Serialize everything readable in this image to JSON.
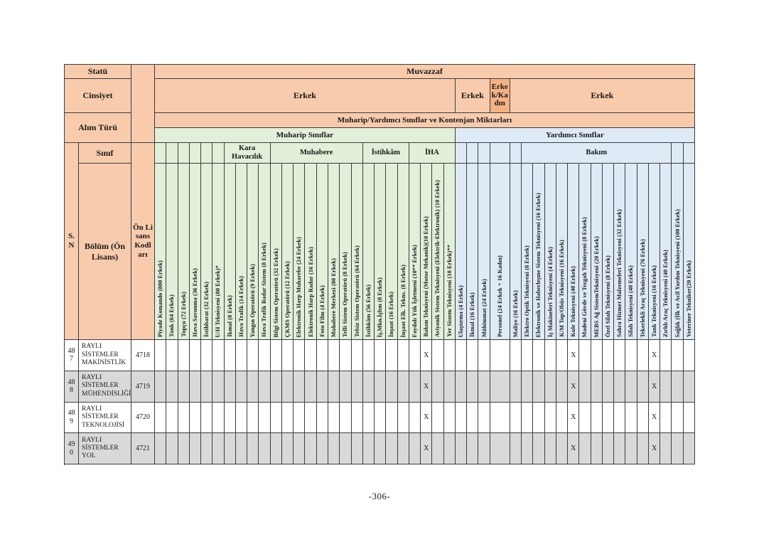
{
  "page": {
    "footer": "-306-"
  },
  "colors": {
    "header_peach": "#F8CBAD",
    "header_peach_dark": "#F4B183",
    "muharip_green": "#E2EFD9",
    "yardimci_blue": "#DEEAF6",
    "row_gray": "#D9D9D9",
    "row_white": "#FFFFFF",
    "border": "#3d3d3d"
  },
  "left_header": {
    "statu": "Statü",
    "cinsiyet": "Cinsiyet",
    "alim_turu": "Alım Türü",
    "sinif": "Sınıf",
    "sn": "S. N",
    "bolum": "Bölüm (Ön Lisans)",
    "on_lisans_kodlari": "Ön Lisans Kodları"
  },
  "top_header": {
    "muvazzaf": "Muvazzaf",
    "kontenjan": "Muharip/Yardımcı Sınıflar ve Kontenjan Miktarları",
    "gender_cells": [
      {
        "label": "Erkek",
        "start": 1,
        "end": 26,
        "dark": false
      },
      {
        "label": "Erkek",
        "start": 27,
        "end": 29,
        "dark": false
      },
      {
        "label": "Erkek/Kadın",
        "start": 30,
        "end": 30,
        "dark": true
      },
      {
        "label": "Erkek",
        "start": 31,
        "end": 46,
        "dark": false
      }
    ]
  },
  "sections": [
    {
      "label": "Muharip Sınıflar",
      "start": 1,
      "end": 26
    },
    {
      "label": "Yardımcı Sınıflar",
      "start": 27,
      "end": 46
    }
  ],
  "groups": [
    {
      "label": "Kara Havacılık",
      "start": 7,
      "end": 10
    },
    {
      "label": "Muhabere",
      "start": 11,
      "end": 18
    },
    {
      "label": "İstihkâm",
      "start": 19,
      "end": 22
    },
    {
      "label": "İHA",
      "start": 23,
      "end": 26
    },
    {
      "label": "Bakım",
      "start": 32,
      "end": 44
    }
  ],
  "columns": [
    {
      "label": "Piyade Komando (800 Erkek)",
      "sec": "m"
    },
    {
      "label": "Tank (64 Erkek)",
      "sec": "m"
    },
    {
      "label": "Topçu (72 Erkek)",
      "sec": "m"
    },
    {
      "label": "Hava Savunma (36 Erkek)",
      "sec": "m"
    },
    {
      "label": "İstihbarat (32 Erkek)",
      "sec": "m"
    },
    {
      "label": "U/H Teknisyeni (80 Erkek)*",
      "sec": "m"
    },
    {
      "label": "İkmal (8 Erkek)",
      "sec": "m"
    },
    {
      "label": "Hava Trafik (14 Erkek)",
      "sec": "m"
    },
    {
      "label": "Yangın Operatörü (9 Erkek)",
      "sec": "m"
    },
    {
      "label": "Hava Trafik Radar Sistem (8 Erkek)",
      "sec": "m"
    },
    {
      "label": "Bilgi Sistem Operatörü (32 Erkek)",
      "sec": "m"
    },
    {
      "label": "ÇKMS Operatörü (12 Erkek)",
      "sec": "m"
    },
    {
      "label": "Elektronik Harp Muharebe (24 Erkek)",
      "sec": "m"
    },
    {
      "label": "Elektronik Harp Radar (16 Erkek)",
      "sec": "m"
    },
    {
      "label": "Foto Film (4 Erkek)",
      "sec": "m"
    },
    {
      "label": "Muhabere Merkezi (80 Erkek)",
      "sec": "m"
    },
    {
      "label": "Telli Sistem Operatörü (8 Erkek)",
      "sec": "m"
    },
    {
      "label": "Telsiz Sistem Operatörü (64 Erkek)",
      "sec": "m"
    },
    {
      "label": "İstihkâm (56 Erkek)",
      "sec": "m"
    },
    {
      "label": "İş.Mkn.İşltm (8 Erkek)",
      "sec": "m"
    },
    {
      "label": "İnşaat (16 Erkek)",
      "sec": "m"
    },
    {
      "label": "İnşaat Elk. Tekns. (8 Erkek)",
      "sec": "m"
    },
    {
      "label": "Faydalı Yük İşletmeni (10** Erkek)",
      "sec": "m"
    },
    {
      "label": "Bakım Teknisyeni (Motor Mekanik)(10 Erkek)",
      "sec": "m"
    },
    {
      "label": "Aviyonik Sistem Teknisyeni (Elektrik-Elektronik) (10 Erkek)",
      "sec": "m"
    },
    {
      "label": "Yer Sistem Teknisyeni (10 Erkek)**",
      "sec": "m"
    },
    {
      "label": "Ulaştırma (4 Erkek)",
      "sec": "y"
    },
    {
      "label": "İkmal (16 Erkek)",
      "sec": "y"
    },
    {
      "label": "Mühimmat (24 Erkek)",
      "sec": "y"
    },
    {
      "label": "Personel (24 Erkek + 16 Kadın)",
      "sec": "y",
      "wide": true
    },
    {
      "label": "Maliye (16 Erkek)",
      "sec": "y"
    },
    {
      "label": "Elektro Optik Teknisyeni (8 Erkek)",
      "sec": "y"
    },
    {
      "label": "Elektronik ve Haberleşme Sistem Teknisyeni (16 Erkek)",
      "sec": "y"
    },
    {
      "label": "İş Makineleri Teknisyeni (4 Erkek)",
      "sec": "y"
    },
    {
      "label": "K/M Top/Obüs Teknisyeni (16 Erkek)",
      "sec": "y"
    },
    {
      "label": "Kule Teknisyeni (40 Erkek)",
      "sec": "y"
    },
    {
      "label": "Madeni Gövde ve Tezgah Teknisyeni (8 Erkek)",
      "sec": "y"
    },
    {
      "label": "MEBS Ağ SistemTeknisyeni (20 Erkek)",
      "sec": "y"
    },
    {
      "label": "Özel Silah Teknisyeni (8 Erkek)",
      "sec": "y"
    },
    {
      "label": "Sahra Hizmet Malzemeleri Teknisyeni (32 Erkek)",
      "sec": "y"
    },
    {
      "label": "Silah Teknisyeni (40 Erkek)",
      "sec": "y"
    },
    {
      "label": "Tekerlekli Araç Teknisyeni (76 Erkek)",
      "sec": "y"
    },
    {
      "label": "Tank Teknisyeni (16 Erkek)",
      "sec": "y"
    },
    {
      "label": "Zırhlı Araç Teknisyeni (40 Erkek)",
      "sec": "y"
    },
    {
      "label": "Sağlık (İlk ve Acil Yardım Teknisyeni (100 Erkek)",
      "sec": "y"
    },
    {
      "label": "Veteriner Tekniker(20 Erkek)",
      "sec": "y"
    }
  ],
  "mark": "X",
  "rows": [
    {
      "sn": "487",
      "bolum": "RAYLI SİSTEMLER MAKİNİSTLİK",
      "code": "4718",
      "marks": [
        24,
        36,
        43
      ]
    },
    {
      "sn": "488",
      "bolum": "RAYLI SİSTEMLER MÜHENDİSLİĞİ",
      "code": "4719",
      "marks": [
        24,
        36,
        43
      ]
    },
    {
      "sn": "489",
      "bolum": "RAYLI SİSTEMLER TEKNOLOJİSİ",
      "code": "4720",
      "marks": [
        24,
        36,
        43
      ]
    },
    {
      "sn": "490",
      "bolum": "RAYLI SİSTEMLER YOL",
      "code": "4721",
      "marks": [
        24,
        36,
        43
      ]
    }
  ]
}
